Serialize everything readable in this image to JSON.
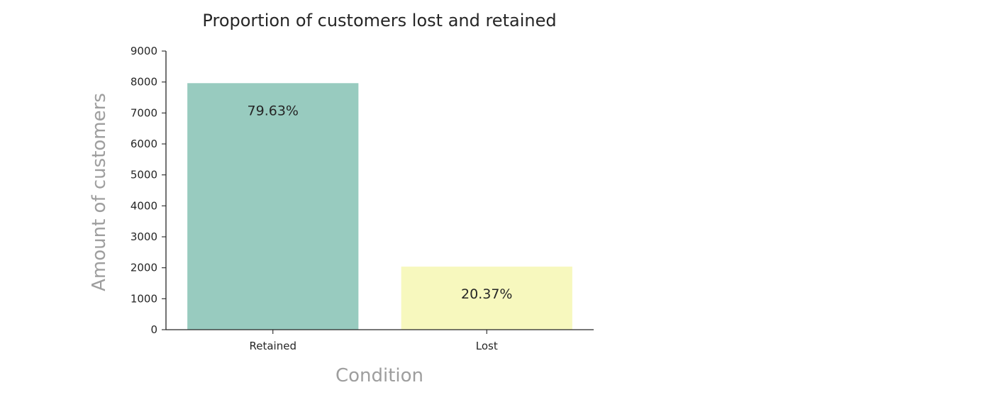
{
  "chart_data": {
    "type": "bar",
    "title": "Proportion of customers lost and retained",
    "xlabel": "Condition",
    "ylabel": "Amount of customers",
    "categories": [
      "Retained",
      "Lost"
    ],
    "values": [
      7963,
      2037
    ],
    "data_labels": [
      "79.63%",
      "20.37%"
    ],
    "colors": [
      "#98cbbf",
      "#f7f8be"
    ],
    "ylim": [
      0,
      9000
    ],
    "yticks": [
      0,
      1000,
      2000,
      3000,
      4000,
      5000,
      6000,
      7000,
      8000,
      9000
    ],
    "grid": false
  }
}
